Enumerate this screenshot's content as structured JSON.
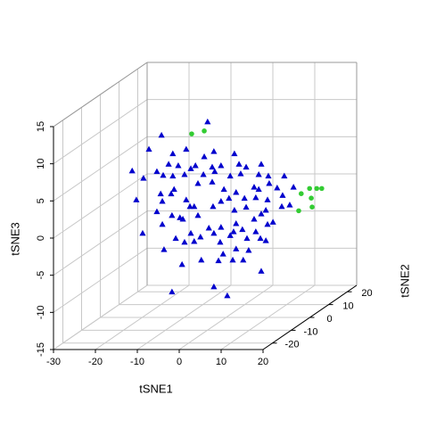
{
  "chart_data": {
    "type": "scatter3d",
    "x_label": "tSNE1",
    "y_label": "tSNE2",
    "z_label": "tSNE3",
    "xlim": [
      -30,
      20
    ],
    "ylim": [
      -25,
      25
    ],
    "zlim": [
      -15,
      15
    ],
    "xticks": [
      -30,
      -20,
      -10,
      0,
      10,
      20
    ],
    "yticks": [
      -20,
      -10,
      0,
      10,
      20
    ],
    "zticks": [
      -15,
      -10,
      -5,
      0,
      5,
      10,
      15
    ],
    "grid": true,
    "series": [
      {
        "color": "#0000cd",
        "marker": "triangle",
        "x": [
          -4.4,
          -15.4,
          -18.4,
          -9.5,
          -22.4,
          -12.7,
          -5.2,
          -2.9,
          2.0,
          -13.7,
          -16.5,
          -11.4,
          -8.4,
          -7.3,
          -3.3,
          -1.2,
          3.1,
          4.8,
          8.4,
          -19.7,
          -15.0,
          -12.7,
          -9.9,
          -5.4,
          -2.7,
          1.0,
          3.5,
          10.1,
          13.9,
          -21.4,
          -12.4,
          -6.7,
          -3.3,
          -0.5,
          2.4,
          6.7,
          7.8,
          10.3,
          12.2,
          16.1,
          -15.2,
          -13.1,
          -9.5,
          -8.6,
          -1.2,
          0.7,
          4.4,
          7.1,
          9.9,
          13.5,
          15.2,
          -16.5,
          -12.9,
          -10.3,
          -7.6,
          -3.1,
          2.0,
          4.8,
          9.5,
          13.3,
          -15.2,
          -11.0,
          -6.7,
          -4.1,
          -1.2,
          2.4,
          6.7,
          8.4,
          11.2,
          -8.4,
          -6.1,
          -2.9,
          1.0,
          3.9,
          7.1,
          9.9,
          -14.8,
          -12.0,
          -9.9,
          -7.6,
          -1.4,
          1.8,
          5.0,
          8.2,
          9.5,
          -10.5,
          -5.9,
          -0.7,
          1.6,
          4.1,
          -1.8,
          8.4,
          -12.9,
          -2.9,
          0.3,
          2.4,
          5.4,
          -19.9,
          -15.6,
          7.8
        ],
        "y": [
          0,
          0,
          0,
          0,
          0,
          0,
          0,
          0,
          0,
          0,
          0,
          0,
          0,
          0,
          0,
          0,
          0,
          0,
          0,
          0,
          0,
          0,
          0,
          0,
          0,
          0,
          0,
          0,
          0,
          0,
          0,
          0,
          0,
          0,
          0,
          0,
          0,
          0,
          0,
          0,
          0,
          0,
          0,
          0,
          0,
          0,
          0,
          0,
          0,
          0,
          0,
          0,
          0,
          0,
          0,
          0,
          0,
          0,
          0,
          0,
          0,
          0,
          0,
          0,
          0,
          0,
          0,
          0,
          0,
          0,
          0,
          0,
          0,
          0,
          0,
          0,
          0,
          0,
          0,
          0,
          0,
          0,
          0,
          0,
          0,
          0,
          0,
          0,
          0,
          0,
          0,
          0,
          0,
          0,
          0,
          0,
          0,
          0,
          0,
          0
        ],
        "z": [
          11.3,
          9.5,
          7.6,
          7.6,
          4.7,
          7.0,
          6.6,
          7.3,
          7.0,
          5.6,
          4.6,
          5.4,
          5.0,
          5.4,
          5.2,
          5.4,
          5.6,
          5.2,
          5.6,
          3.7,
          4.1,
          4.0,
          4.2,
          4.2,
          4.6,
          4.0,
          4.3,
          4.0,
          4.0,
          0.8,
          2.2,
          3.0,
          3.2,
          2.2,
          1.8,
          2.5,
          2.2,
          3.0,
          2.4,
          2.5,
          0.6,
          1.6,
          0.8,
          -0.1,
          0.6,
          1.0,
          1.0,
          1.1,
          0.8,
          1.4,
          0.1,
          -0.8,
          -1.3,
          -1.8,
          -0.1,
          -0.1,
          -0.6,
          -0.2,
          -0.6,
          -0.1,
          -2.5,
          -1.6,
          -1.3,
          -3.0,
          -2.9,
          -2.4,
          -1.8,
          -1.1,
          -2.2,
          -3.7,
          -4.2,
          -3.7,
          -4.0,
          -3.2,
          -3.5,
          -2.5,
          -5.9,
          -4.4,
          -4.9,
          -4.8,
          -4.9,
          -3.5,
          -4.4,
          -4.4,
          -4.7,
          -7.9,
          -7.3,
          -6.5,
          -7.3,
          -7.3,
          -7.4,
          -8.8,
          -11.6,
          -10.9,
          -12.1,
          -5.8,
          -6.0,
          -3.7,
          1.6,
          4.2
        ]
      },
      {
        "color": "#33cc33",
        "marker": "circle",
        "x": [
          -8.2,
          -5.2,
          9.0,
          11.0,
          12.7,
          13.9,
          11.4,
          8.4,
          11.6
        ],
        "y": [
          0,
          0,
          20,
          20,
          20,
          20,
          20,
          20,
          20
        ],
        "z": [
          9.7,
          10.1,
          -1.8,
          -1.1,
          -1.1,
          -1.1,
          -2.4,
          -4.1,
          -3.6
        ]
      }
    ]
  }
}
